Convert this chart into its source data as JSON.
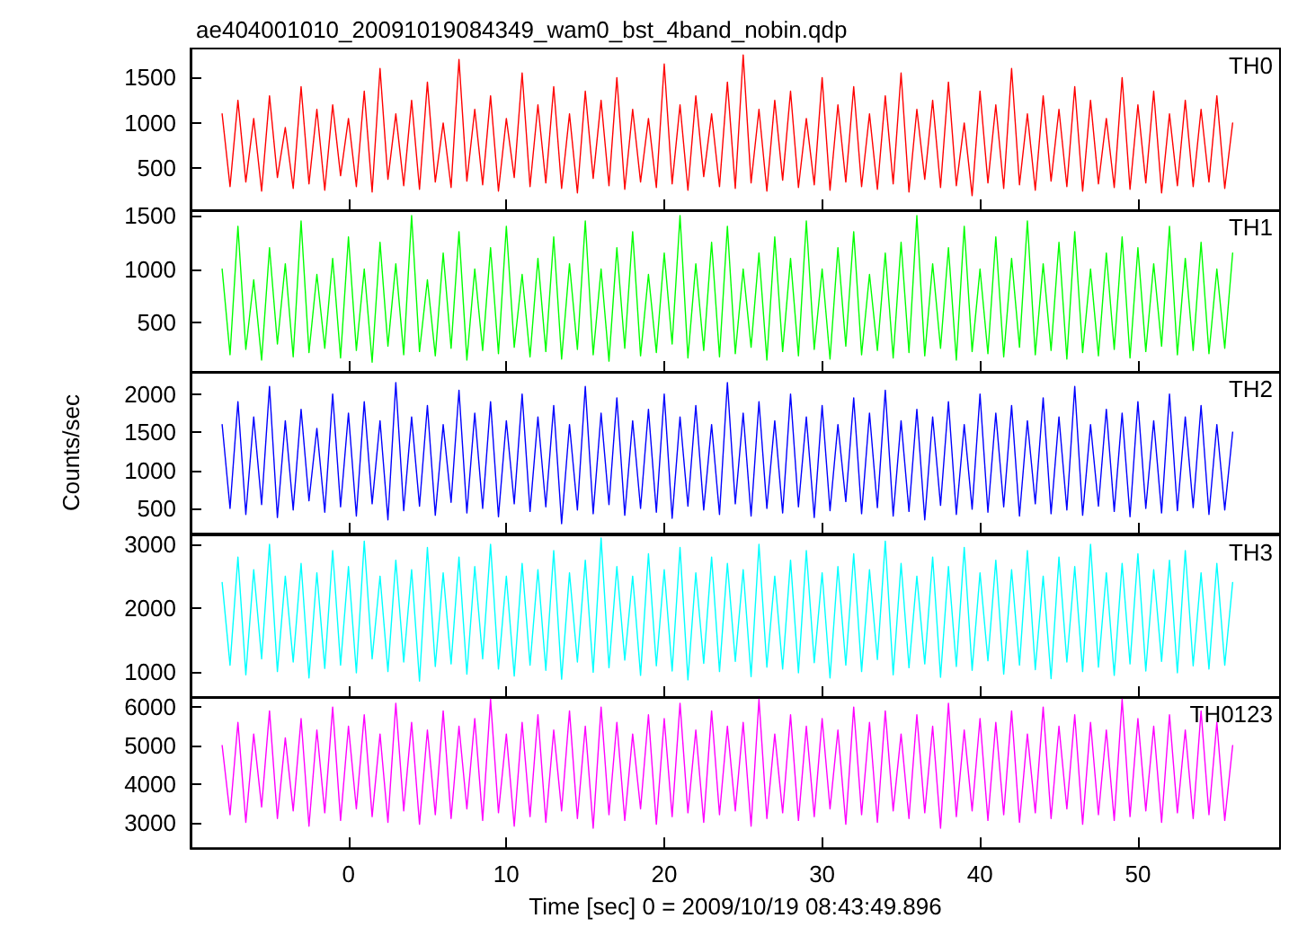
{
  "chart_data": [
    {
      "type": "line",
      "title": "ae404001010_20091019084349_wam0_bst_4band_nobin.qdp",
      "annotations": [
        "TH0"
      ],
      "color": "#ff0000",
      "tick_labels": "y",
      "grid": false,
      "x": [
        -8,
        -7.5,
        -7,
        -6.5,
        -6,
        -5.5,
        -5,
        -4.5,
        -4,
        -3.5,
        -3,
        -2.5,
        -2,
        -1.5,
        -1,
        -0.5,
        0,
        0.5,
        1,
        1.5,
        2,
        2.5,
        3,
        3.5,
        4,
        4.5,
        5,
        5.5,
        6,
        6.5,
        7,
        7.5,
        8,
        8.5,
        9,
        9.5,
        10,
        10.5,
        11,
        11.5,
        12,
        12.5,
        13,
        13.5,
        14,
        14.5,
        15,
        15.5,
        16,
        16.5,
        17,
        17.5,
        18,
        18.5,
        19,
        19.5,
        20,
        20.5,
        21,
        21.5,
        22,
        22.5,
        23,
        23.5,
        24,
        24.5,
        25,
        25.5,
        26,
        26.5,
        27,
        27.5,
        28,
        28.5,
        29,
        29.5,
        30,
        30.5,
        31,
        31.5,
        32,
        32.5,
        33,
        33.5,
        34,
        34.5,
        35,
        35.5,
        36,
        36.5,
        37,
        37.5,
        38,
        38.5,
        39,
        39.5,
        40,
        40.5,
        41,
        41.5,
        42,
        42.5,
        43,
        43.5,
        44,
        44.5,
        45,
        45.5,
        46,
        46.5,
        47,
        47.5,
        48,
        48.5,
        49,
        49.5,
        50,
        50.5,
        51,
        51.5,
        52,
        52.5,
        53,
        53.5,
        54,
        54.5,
        55,
        55.5,
        56
      ],
      "values": [
        1100,
        300,
        1250,
        350,
        1050,
        250,
        1300,
        400,
        950,
        280,
        1400,
        330,
        1150,
        260,
        1200,
        420,
        1050,
        300,
        1350,
        240,
        1600,
        380,
        1100,
        310,
        1250,
        270,
        1450,
        350,
        1000,
        290,
        1700,
        360,
        1150,
        320,
        1300,
        250,
        1050,
        400,
        1550,
        300,
        1200,
        340,
        1400,
        280,
        1100,
        230,
        1350,
        390,
        1250,
        310,
        1500,
        270,
        1150,
        350,
        1050,
        290,
        1650,
        330,
        1200,
        260,
        1300,
        410,
        1100,
        300,
        1450,
        280,
        1750,
        340,
        1150,
        250,
        1250,
        370,
        1350,
        290,
        1050,
        320,
        1500,
        260,
        1200,
        350,
        1400,
        300,
        1100,
        270,
        1300,
        330,
        1550,
        240,
        1150,
        380,
        1250,
        290,
        1450,
        310,
        1000,
        200,
        1350,
        340,
        1200,
        280,
        1600,
        320,
        1100,
        260,
        1300,
        360,
        1150,
        300,
        1400,
        250,
        1250,
        330,
        1050,
        290,
        1500,
        270,
        1200,
        340,
        1350,
        230,
        1100,
        310,
        1250,
        300,
        1150,
        350,
        1300,
        280,
        1000
      ],
      "xlim": [
        -10,
        59
      ],
      "xticks": [
        0,
        10,
        20,
        30,
        40,
        50
      ],
      "ylim": [
        40,
        1820
      ],
      "yticks": [
        500,
        1000,
        1500
      ]
    },
    {
      "type": "line",
      "annotations": [
        "TH1"
      ],
      "color": "#00ff00",
      "tick_labels": "y",
      "grid": false,
      "x": [
        -8,
        -7.5,
        -7,
        -6.5,
        -6,
        -5.5,
        -5,
        -4.5,
        -4,
        -3.5,
        -3,
        -2.5,
        -2,
        -1.5,
        -1,
        -0.5,
        0,
        0.5,
        1,
        1.5,
        2,
        2.5,
        3,
        3.5,
        4,
        4.5,
        5,
        5.5,
        6,
        6.5,
        7,
        7.5,
        8,
        8.5,
        9,
        9.5,
        10,
        10.5,
        11,
        11.5,
        12,
        12.5,
        13,
        13.5,
        14,
        14.5,
        15,
        15.5,
        16,
        16.5,
        17,
        17.5,
        18,
        18.5,
        19,
        19.5,
        20,
        20.5,
        21,
        21.5,
        22,
        22.5,
        23,
        23.5,
        24,
        24.5,
        25,
        25.5,
        26,
        26.5,
        27,
        27.5,
        28,
        28.5,
        29,
        29.5,
        30,
        30.5,
        31,
        31.5,
        32,
        32.5,
        33,
        33.5,
        34,
        34.5,
        35,
        35.5,
        36,
        36.5,
        37,
        37.5,
        38,
        38.5,
        39,
        39.5,
        40,
        40.5,
        41,
        41.5,
        42,
        42.5,
        43,
        43.5,
        44,
        44.5,
        45,
        45.5,
        46,
        46.5,
        47,
        47.5,
        48,
        48.5,
        49,
        49.5,
        50,
        50.5,
        51,
        51.5,
        52,
        52.5,
        53,
        53.5,
        54,
        54.5,
        55,
        55.5,
        56
      ],
      "values": [
        1000,
        200,
        1400,
        250,
        900,
        150,
        1200,
        300,
        1050,
        180,
        1450,
        220,
        950,
        260,
        1100,
        170,
        1300,
        240,
        1000,
        130,
        1250,
        280,
        1050,
        200,
        1500,
        230,
        900,
        190,
        1150,
        260,
        1350,
        150,
        1000,
        240,
        1200,
        210,
        1400,
        270,
        950,
        180,
        1100,
        230,
        1300,
        160,
        1050,
        250,
        1450,
        200,
        1000,
        140,
        1200,
        260,
        1350,
        190,
        950,
        220,
        1150,
        300,
        1500,
        170,
        1050,
        240,
        1250,
        180,
        1400,
        210,
        1000,
        270,
        1150,
        150,
        1300,
        230,
        1100,
        190,
        1450,
        250,
        1000,
        160,
        1200,
        280,
        1350,
        200,
        950,
        240,
        1150,
        170,
        1250,
        220,
        1500,
        190,
        1050,
        260,
        1200,
        150,
        1400,
        230,
        1000,
        210,
        1300,
        180,
        1100,
        270,
        1450,
        200,
        1050,
        240,
        1250,
        160,
        1350,
        220,
        1000,
        190,
        1150,
        250,
        1300,
        170,
        1200,
        230,
        1050,
        280,
        1400,
        200,
        1100,
        240,
        1250,
        210,
        1000,
        260,
        1150
      ],
      "xlim": [
        -10,
        59
      ],
      "xticks": [
        0,
        10,
        20,
        30,
        40,
        50
      ],
      "ylim": [
        40,
        1550
      ],
      "yticks": [
        500,
        1000,
        1500
      ]
    },
    {
      "type": "line",
      "ylabel": "Counts/sec",
      "annotations": [
        "TH2"
      ],
      "color": "#0000ff",
      "tick_labels": "y",
      "grid": false,
      "x": [
        -8,
        -7.5,
        -7,
        -6.5,
        -6,
        -5.5,
        -5,
        -4.5,
        -4,
        -3.5,
        -3,
        -2.5,
        -2,
        -1.5,
        -1,
        -0.5,
        0,
        0.5,
        1,
        1.5,
        2,
        2.5,
        3,
        3.5,
        4,
        4.5,
        5,
        5.5,
        6,
        6.5,
        7,
        7.5,
        8,
        8.5,
        9,
        9.5,
        10,
        10.5,
        11,
        11.5,
        12,
        12.5,
        13,
        13.5,
        14,
        14.5,
        15,
        15.5,
        16,
        16.5,
        17,
        17.5,
        18,
        18.5,
        19,
        19.5,
        20,
        20.5,
        21,
        21.5,
        22,
        22.5,
        23,
        23.5,
        24,
        24.5,
        25,
        25.5,
        26,
        26.5,
        27,
        27.5,
        28,
        28.5,
        29,
        29.5,
        30,
        30.5,
        31,
        31.5,
        32,
        32.5,
        33,
        33.5,
        34,
        34.5,
        35,
        35.5,
        36,
        36.5,
        37,
        37.5,
        38,
        38.5,
        39,
        39.5,
        40,
        40.5,
        41,
        41.5,
        42,
        42.5,
        43,
        43.5,
        44,
        44.5,
        45,
        45.5,
        46,
        46.5,
        47,
        47.5,
        48,
        48.5,
        49,
        49.5,
        50,
        50.5,
        51,
        51.5,
        52,
        52.5,
        53,
        53.5,
        54,
        54.5,
        55,
        55.5,
        56
      ],
      "values": [
        1600,
        500,
        1900,
        420,
        1700,
        550,
        2100,
        380,
        1650,
        480,
        1800,
        600,
        1550,
        450,
        2000,
        520,
        1750,
        400,
        1900,
        560,
        1650,
        350,
        2150,
        470,
        1700,
        530,
        1850,
        410,
        1600,
        580,
        2050,
        440,
        1750,
        500,
        1900,
        390,
        1650,
        560,
        2000,
        460,
        1700,
        520,
        1850,
        300,
        1600,
        480,
        2100,
        430,
        1750,
        550,
        1950,
        410,
        1650,
        500,
        1800,
        450,
        2000,
        370,
        1700,
        530,
        1850,
        480,
        1600,
        420,
        2150,
        560,
        1750,
        400,
        1900,
        500,
        1650,
        440,
        2000,
        520,
        1700,
        380,
        1850,
        470,
        1600,
        590,
        1950,
        430,
        1750,
        510,
        2050,
        400,
        1650,
        460,
        1800,
        350,
        1700,
        540,
        1900,
        420,
        1600,
        490,
        2000,
        450,
        1750,
        520,
        1850,
        400,
        1650,
        560,
        1950,
        430,
        1700,
        480,
        2100,
        410,
        1600,
        530,
        1800,
        460,
        1750,
        390,
        1900,
        500,
        1650,
        440,
        2000,
        470,
        1700,
        510,
        1850,
        420,
        1600,
        480,
        1500
      ],
      "xlim": [
        -10,
        59
      ],
      "xticks": [
        0,
        10,
        20,
        30,
        40,
        50
      ],
      "ylim": [
        170,
        2290
      ],
      "yticks": [
        500,
        1000,
        1500,
        2000
      ]
    },
    {
      "type": "line",
      "annotations": [
        "TH3"
      ],
      "color": "#00ffff",
      "tick_labels": "y",
      "grid": false,
      "x": [
        -8,
        -7.5,
        -7,
        -6.5,
        -6,
        -5.5,
        -5,
        -4.5,
        -4,
        -3.5,
        -3,
        -2.5,
        -2,
        -1.5,
        -1,
        -0.5,
        0,
        0.5,
        1,
        1.5,
        2,
        2.5,
        3,
        3.5,
        4,
        4.5,
        5,
        5.5,
        6,
        6.5,
        7,
        7.5,
        8,
        8.5,
        9,
        9.5,
        10,
        10.5,
        11,
        11.5,
        12,
        12.5,
        13,
        13.5,
        14,
        14.5,
        15,
        15.5,
        16,
        16.5,
        17,
        17.5,
        18,
        18.5,
        19,
        19.5,
        20,
        20.5,
        21,
        21.5,
        22,
        22.5,
        23,
        23.5,
        24,
        24.5,
        25,
        25.5,
        26,
        26.5,
        27,
        27.5,
        28,
        28.5,
        29,
        29.5,
        30,
        30.5,
        31,
        31.5,
        32,
        32.5,
        33,
        33.5,
        34,
        34.5,
        35,
        35.5,
        36,
        36.5,
        37,
        37.5,
        38,
        38.5,
        39,
        39.5,
        40,
        40.5,
        41,
        41.5,
        42,
        42.5,
        43,
        43.5,
        44,
        44.5,
        45,
        45.5,
        46,
        46.5,
        47,
        47.5,
        48,
        48.5,
        49,
        49.5,
        50,
        50.5,
        51,
        51.5,
        52,
        52.5,
        53,
        53.5,
        54,
        54.5,
        55,
        55.5,
        56
      ],
      "values": [
        2400,
        1100,
        2800,
        950,
        2600,
        1200,
        3000,
        1000,
        2500,
        1150,
        2700,
        900,
        2550,
        1050,
        2900,
        1100,
        2650,
        980,
        3050,
        1200,
        2500,
        1000,
        2750,
        1150,
        2600,
        850,
        2950,
        1080,
        2550,
        1120,
        2800,
        960,
        2650,
        1200,
        3000,
        1040,
        2500,
        930,
        2700,
        1100,
        2600,
        1020,
        2900,
        880,
        2550,
        1150,
        2750,
        990,
        3100,
        1060,
        2650,
        1180,
        2500,
        940,
        2850,
        1090,
        2600,
        1010,
        2950,
        870,
        2550,
        1130,
        2800,
        1000,
        2700,
        1160,
        2600,
        920,
        3000,
        1070,
        2500,
        1040,
        2750,
        980,
        2900,
        1140,
        2550,
        900,
        2650,
        1100,
        2850,
        1000,
        2600,
        1190,
        3050,
        950,
        2700,
        1060,
        2500,
        1120,
        2800,
        910,
        2650,
        1080,
        2950,
        1020,
        2550,
        1170,
        2750,
        960,
        2600,
        1100,
        2900,
        1030,
        2500,
        890,
        2800,
        1150,
        2650,
        1000,
        3000,
        1070,
        2550,
        940,
        2700,
        1120,
        2850,
        1010,
        2600,
        1160,
        2750,
        980,
        2900,
        1090,
        2550,
        1040,
        2700,
        1100,
        2400
      ],
      "xlim": [
        -10,
        59
      ],
      "xticks": [
        0,
        10,
        20,
        30,
        40,
        50
      ],
      "ylim": [
        600,
        3140
      ],
      "yticks": [
        1000,
        2000,
        3000
      ]
    },
    {
      "type": "line",
      "xlabel": "Time [sec] 0 = 2009/10/19 08:43:49.896",
      "annotations": [
        "TH0123"
      ],
      "color": "#ff00ff",
      "grid": false,
      "x": [
        -8,
        -7.5,
        -7,
        -6.5,
        -6,
        -5.5,
        -5,
        -4.5,
        -4,
        -3.5,
        -3,
        -2.5,
        -2,
        -1.5,
        -1,
        -0.5,
        0,
        0.5,
        1,
        1.5,
        2,
        2.5,
        3,
        3.5,
        4,
        4.5,
        5,
        5.5,
        6,
        6.5,
        7,
        7.5,
        8,
        8.5,
        9,
        9.5,
        10,
        10.5,
        11,
        11.5,
        12,
        12.5,
        13,
        13.5,
        14,
        14.5,
        15,
        15.5,
        16,
        16.5,
        17,
        17.5,
        18,
        18.5,
        19,
        19.5,
        20,
        20.5,
        21,
        21.5,
        22,
        22.5,
        23,
        23.5,
        24,
        24.5,
        25,
        25.5,
        26,
        26.5,
        27,
        27.5,
        28,
        28.5,
        29,
        29.5,
        30,
        30.5,
        31,
        31.5,
        32,
        32.5,
        33,
        33.5,
        34,
        34.5,
        35,
        35.5,
        36,
        36.5,
        37,
        37.5,
        38,
        38.5,
        39,
        39.5,
        40,
        40.5,
        41,
        41.5,
        42,
        42.5,
        43,
        43.5,
        44,
        44.5,
        45,
        45.5,
        46,
        46.5,
        47,
        47.5,
        48,
        48.5,
        49,
        49.5,
        50,
        50.5,
        51,
        51.5,
        52,
        52.5,
        53,
        53.5,
        54,
        54.5,
        55,
        55.5,
        56
      ],
      "values": [
        5000,
        3200,
        5600,
        3000,
        5300,
        3400,
        5900,
        3100,
        5200,
        3300,
        5700,
        2900,
        5400,
        3250,
        6000,
        3050,
        5500,
        3350,
        5800,
        3150,
        5300,
        3000,
        6100,
        3300,
        5600,
        2950,
        5400,
        3200,
        5900,
        3100,
        5500,
        3350,
        5700,
        3050,
        6200,
        3250,
        5300,
        2900,
        5600,
        3150,
        5800,
        3000,
        5400,
        3300,
        5900,
        3100,
        5500,
        2850,
        6000,
        3200,
        5600,
        3050,
        5300,
        3350,
        5800,
        2950,
        5700,
        3150,
        6100,
        3250,
        5400,
        3000,
        5900,
        3200,
        5500,
        3300,
        5600,
        2900,
        6200,
        3100,
        5300,
        3250,
        5800,
        3050,
        5500,
        3150,
        5700,
        3350,
        5400,
        2950,
        6000,
        3200,
        5600,
        3000,
        5900,
        3300,
        5300,
        3100,
        5800,
        3250,
        5500,
        2850,
        6100,
        3150,
        5400,
        3300,
        5700,
        3050,
        5600,
        3200,
        5900,
        3000,
        5300,
        3250,
        6000,
        3100,
        5500,
        3350,
        5800,
        2950,
        5600,
        3200,
        5400,
        3050,
        6200,
        3150,
        5700,
        3300,
        5500,
        3000,
        5800,
        3250,
        5400,
        3100,
        5900,
        3200,
        5600,
        3050,
        5000
      ],
      "xlim": [
        -10,
        59
      ],
      "xticks": [
        0,
        10,
        20,
        30,
        40,
        50
      ],
      "ylim": [
        2330,
        6260
      ],
      "yticks": [
        3000,
        4000,
        5000,
        6000
      ]
    }
  ]
}
